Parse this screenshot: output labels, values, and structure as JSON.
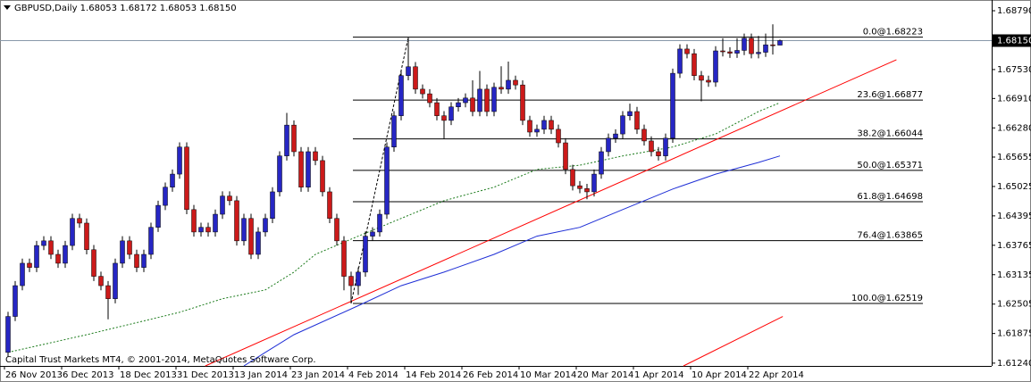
{
  "chart_data": {
    "type": "candlestick",
    "title": "GBPUSD,Daily  1.68053 1.68172 1.68053 1.68150",
    "footer": "Capital Trust Markets MT4, © 2001-2014, MetaQuotes Software Corp.",
    "up_color": "#2626c4",
    "down_color": "#cc1a1a",
    "wick_color": "#000000",
    "ylim": [
      1.6118,
      1.6902
    ],
    "yticks": [
      {
        "value": 1.6879,
        "label": "1.68790"
      },
      {
        "value": 1.6753,
        "label": "1.67530"
      },
      {
        "value": 1.6691,
        "label": "1.66910"
      },
      {
        "value": 1.6628,
        "label": "1.66280"
      },
      1.65655,
      1.65025,
      1.64395,
      1.63765,
      1.63135,
      1.62505,
      1.61875,
      {
        "value": 1.6124,
        "label": "1.61240"
      }
    ],
    "last_price": {
      "value": 1.6815,
      "label": "1.68150"
    },
    "fib_levels": [
      {
        "value": 1.68223,
        "label": "0.0@1.68223"
      },
      {
        "value": 1.66877,
        "label": "23.6@1.66877"
      },
      {
        "value": 1.66044,
        "label": "38.2@1.66044"
      },
      {
        "value": 1.65371,
        "label": "50.0@1.65371"
      },
      {
        "value": 1.64698,
        "label": "61.8@1.64698"
      },
      {
        "value": 1.63865,
        "label": "76.4@1.63865"
      },
      {
        "value": 1.62519,
        "label": "100.0@1.62519"
      }
    ],
    "categories": [
      "26 Nov 2013",
      null,
      null,
      null,
      null,
      null,
      null,
      null,
      "6 Dec 2013",
      null,
      null,
      null,
      null,
      null,
      null,
      null,
      "18 Dec 2013",
      null,
      null,
      null,
      null,
      null,
      null,
      null,
      "31 Dec 2013",
      null,
      null,
      null,
      null,
      null,
      null,
      null,
      "13 Jan 2014",
      null,
      null,
      null,
      null,
      null,
      null,
      null,
      "23 Jan 2014",
      null,
      null,
      null,
      null,
      null,
      null,
      null,
      "4 Feb 2014",
      null,
      null,
      null,
      null,
      null,
      null,
      null,
      "14 Feb 2014",
      null,
      null,
      null,
      null,
      null,
      null,
      null,
      "26 Feb 2014",
      null,
      null,
      null,
      null,
      null,
      null,
      null,
      "10 Mar 2014",
      null,
      null,
      null,
      null,
      null,
      null,
      null,
      "20 Mar 2014",
      null,
      null,
      null,
      null,
      null,
      null,
      null,
      "1 Apr 2014",
      null,
      null,
      null,
      null,
      null,
      null,
      null,
      "10 Apr 2014",
      null,
      null,
      null,
      null,
      null,
      null,
      null,
      "22 Apr 2014",
      null,
      null,
      null,
      null
    ],
    "candles": [
      [
        1.6147,
        1.6234,
        1.6137,
        1.6224
      ],
      [
        1.6224,
        1.63,
        1.6214,
        1.629
      ],
      [
        1.629,
        1.6348,
        1.628,
        1.6338
      ],
      [
        1.6338,
        1.6348,
        1.6319,
        1.6329
      ],
      [
        1.6329,
        1.6386,
        1.6319,
        1.6376
      ],
      [
        1.6376,
        1.6396,
        1.6366,
        1.6386
      ],
      [
        1.6386,
        1.6396,
        1.6347,
        1.6357
      ],
      [
        1.6357,
        1.6367,
        1.6328,
        1.6338
      ],
      [
        1.6338,
        1.6386,
        1.6328,
        1.6376
      ],
      [
        1.6376,
        1.6444,
        1.6366,
        1.6434
      ],
      [
        1.6434,
        1.6444,
        1.6414,
        1.6424
      ],
      [
        1.6424,
        1.6434,
        1.6357,
        1.6367
      ],
      [
        1.6367,
        1.6377,
        1.63,
        1.631
      ],
      [
        1.631,
        1.632,
        1.628,
        1.629
      ],
      [
        1.629,
        1.63,
        1.6218,
        1.6262
      ],
      [
        1.6262,
        1.6348,
        1.6252,
        1.6338
      ],
      [
        1.6338,
        1.6396,
        1.6328,
        1.6386
      ],
      [
        1.6386,
        1.6396,
        1.6347,
        1.6357
      ],
      [
        1.6357,
        1.6367,
        1.6319,
        1.6329
      ],
      [
        1.6329,
        1.6367,
        1.6319,
        1.6357
      ],
      [
        1.6357,
        1.6425,
        1.6347,
        1.6415
      ],
      [
        1.6415,
        1.6472,
        1.6405,
        1.6462
      ],
      [
        1.6462,
        1.6511,
        1.6452,
        1.6501
      ],
      [
        1.6501,
        1.6539,
        1.6491,
        1.6529
      ],
      [
        1.6529,
        1.6597,
        1.6519,
        1.6587
      ],
      [
        1.6587,
        1.6597,
        1.6443,
        1.6453
      ],
      [
        1.6453,
        1.6463,
        1.6395,
        1.6405
      ],
      [
        1.6405,
        1.6425,
        1.6395,
        1.6415
      ],
      [
        1.6415,
        1.6425,
        1.6395,
        1.6405
      ],
      [
        1.6405,
        1.6453,
        1.6395,
        1.6443
      ],
      [
        1.6443,
        1.6492,
        1.6433,
        1.6482
      ],
      [
        1.6482,
        1.6492,
        1.6462,
        1.6472
      ],
      [
        1.6472,
        1.6482,
        1.6376,
        1.6386
      ],
      [
        1.6386,
        1.6444,
        1.6376,
        1.6434
      ],
      [
        1.6434,
        1.6444,
        1.6347,
        1.6357
      ],
      [
        1.6357,
        1.6415,
        1.6347,
        1.6405
      ],
      [
        1.6405,
        1.6444,
        1.6395,
        1.6434
      ],
      [
        1.6434,
        1.6501,
        1.6424,
        1.6491
      ],
      [
        1.6491,
        1.6578,
        1.6481,
        1.6568
      ],
      [
        1.6568,
        1.666,
        1.6558,
        1.6634
      ],
      [
        1.6634,
        1.6644,
        1.6567,
        1.6577
      ],
      [
        1.6577,
        1.6587,
        1.6491,
        1.6501
      ],
      [
        1.6501,
        1.6587,
        1.6491,
        1.6577
      ],
      [
        1.6577,
        1.6587,
        1.6548,
        1.6558
      ],
      [
        1.6558,
        1.6568,
        1.6481,
        1.6491
      ],
      [
        1.6491,
        1.6501,
        1.6424,
        1.6434
      ],
      [
        1.6434,
        1.6444,
        1.6376,
        1.6386
      ],
      [
        1.6386,
        1.6396,
        1.628,
        1.631
      ],
      [
        1.631,
        1.632,
        1.6252,
        1.629
      ],
      [
        1.629,
        1.6329,
        1.627,
        1.6319
      ],
      [
        1.6319,
        1.6406,
        1.6309,
        1.6396
      ],
      [
        1.6396,
        1.6415,
        1.6386,
        1.6405
      ],
      [
        1.6405,
        1.6453,
        1.6395,
        1.6443
      ],
      [
        1.6443,
        1.6597,
        1.6433,
        1.6587
      ],
      [
        1.6587,
        1.6664,
        1.6577,
        1.6654
      ],
      [
        1.6654,
        1.675,
        1.6644,
        1.674
      ],
      [
        1.674,
        1.6822,
        1.673,
        1.6759
      ],
      [
        1.6759,
        1.6769,
        1.6701,
        1.6711
      ],
      [
        1.6711,
        1.6721,
        1.6691,
        1.6701
      ],
      [
        1.6701,
        1.6711,
        1.6672,
        1.6682
      ],
      [
        1.6682,
        1.6692,
        1.6644,
        1.6654
      ],
      [
        1.6654,
        1.6664,
        1.6605,
        1.6644
      ],
      [
        1.6644,
        1.6683,
        1.6634,
        1.6673
      ],
      [
        1.6673,
        1.6692,
        1.6663,
        1.6682
      ],
      [
        1.6682,
        1.6702,
        1.6672,
        1.6692
      ],
      [
        1.6692,
        1.673,
        1.6653,
        1.6663
      ],
      [
        1.6663,
        1.675,
        1.6653,
        1.6711
      ],
      [
        1.6711,
        1.6721,
        1.6653,
        1.6663
      ],
      [
        1.6663,
        1.6725,
        1.6653,
        1.6715
      ],
      [
        1.6715,
        1.676,
        1.6701,
        1.6711
      ],
      [
        1.6711,
        1.677,
        1.6701,
        1.673
      ],
      [
        1.673,
        1.674,
        1.671,
        1.672
      ],
      [
        1.672,
        1.673,
        1.6634,
        1.6644
      ],
      [
        1.6644,
        1.6654,
        1.6609,
        1.6619
      ],
      [
        1.6619,
        1.6635,
        1.6609,
        1.6625
      ],
      [
        1.6625,
        1.6654,
        1.6615,
        1.6644
      ],
      [
        1.6644,
        1.6654,
        1.6615,
        1.6625
      ],
      [
        1.6625,
        1.6635,
        1.6586,
        1.6596
      ],
      [
        1.6596,
        1.6606,
        1.6529,
        1.6539
      ],
      [
        1.6539,
        1.6549,
        1.6494,
        1.6504
      ],
      [
        1.6504,
        1.6514,
        1.6488,
        1.6498
      ],
      [
        1.6498,
        1.6508,
        1.6475,
        1.6491
      ],
      [
        1.6491,
        1.6539,
        1.6481,
        1.6529
      ],
      [
        1.6529,
        1.6587,
        1.6519,
        1.6577
      ],
      [
        1.6577,
        1.6616,
        1.6567,
        1.6606
      ],
      [
        1.6606,
        1.6625,
        1.6596,
        1.6615
      ],
      [
        1.6615,
        1.6664,
        1.6605,
        1.6654
      ],
      [
        1.6654,
        1.668,
        1.6644,
        1.6663
      ],
      [
        1.6663,
        1.6673,
        1.6615,
        1.6625
      ],
      [
        1.6625,
        1.6635,
        1.659,
        1.66
      ],
      [
        1.66,
        1.661,
        1.6567,
        1.6577
      ],
      [
        1.6577,
        1.6587,
        1.6558,
        1.6568
      ],
      [
        1.6568,
        1.6616,
        1.6558,
        1.6606
      ],
      [
        1.6606,
        1.6755,
        1.6596,
        1.6745
      ],
      [
        1.6745,
        1.6807,
        1.6735,
        1.6797
      ],
      [
        1.6797,
        1.6807,
        1.6777,
        1.6787
      ],
      [
        1.6787,
        1.6797,
        1.673,
        1.674
      ],
      [
        1.674,
        1.675,
        1.6685,
        1.673
      ],
      [
        1.673,
        1.674,
        1.6716,
        1.6726
      ],
      [
        1.6726,
        1.6803,
        1.6716,
        1.6793
      ],
      [
        1.6793,
        1.682,
        1.6781,
        1.6791
      ],
      [
        1.6791,
        1.6801,
        1.6778,
        1.6788
      ],
      [
        1.6788,
        1.682,
        1.6778,
        1.6794
      ],
      [
        1.6794,
        1.683,
        1.6784,
        1.682
      ],
      [
        1.682,
        1.683,
        1.6777,
        1.6787
      ],
      [
        1.6787,
        1.6825,
        1.6777,
        1.679
      ],
      [
        1.679,
        1.683,
        1.678,
        1.6806
      ],
      [
        1.6806,
        1.685,
        1.6785,
        1.6805
      ],
      [
        1.68053,
        1.68172,
        1.68053,
        1.6815
      ]
    ],
    "lines": [
      {
        "color": "#1a7a1a",
        "dash": "dotted",
        "x": [
          0,
          11,
          24,
          30,
          36,
          40,
          43,
          49,
          55,
          61,
          68,
          74,
          80,
          86,
          93,
          99,
          105,
          108
        ],
        "values": [
          1.6147,
          1.6185,
          1.6233,
          1.6262,
          1.6281,
          1.6319,
          1.6357,
          1.6396,
          1.6434,
          1.6472,
          1.6501,
          1.6539,
          1.6548,
          1.6568,
          1.6587,
          1.6615,
          1.6663,
          1.6682
        ]
      },
      {
        "color": "#1f2fd6",
        "dash": "solid",
        "x": [
          33,
          36,
          40,
          49,
          55,
          61,
          68,
          74,
          80,
          86,
          93,
          99,
          105,
          108
        ],
        "values": [
          1.6118,
          1.6147,
          1.6185,
          1.6247,
          1.629,
          1.6319,
          1.6357,
          1.6396,
          1.6415,
          1.6453,
          1.6497,
          1.6529,
          1.6554,
          1.6568
        ]
      },
      {
        "color": "#ff0000",
        "dash": "solid",
        "x": [
          27.6,
          124.3
        ],
        "values": [
          1.6118,
          1.6774
        ]
      },
      {
        "color": "#ff0000",
        "dash": "solid",
        "x": [
          94.5,
          108.4
        ],
        "values": [
          1.6118,
          1.6224
        ]
      },
      {
        "color": "#000000",
        "dash": "dashed",
        "x": [
          48,
          56
        ],
        "values": [
          1.6252,
          1.6822
        ]
      }
    ]
  }
}
